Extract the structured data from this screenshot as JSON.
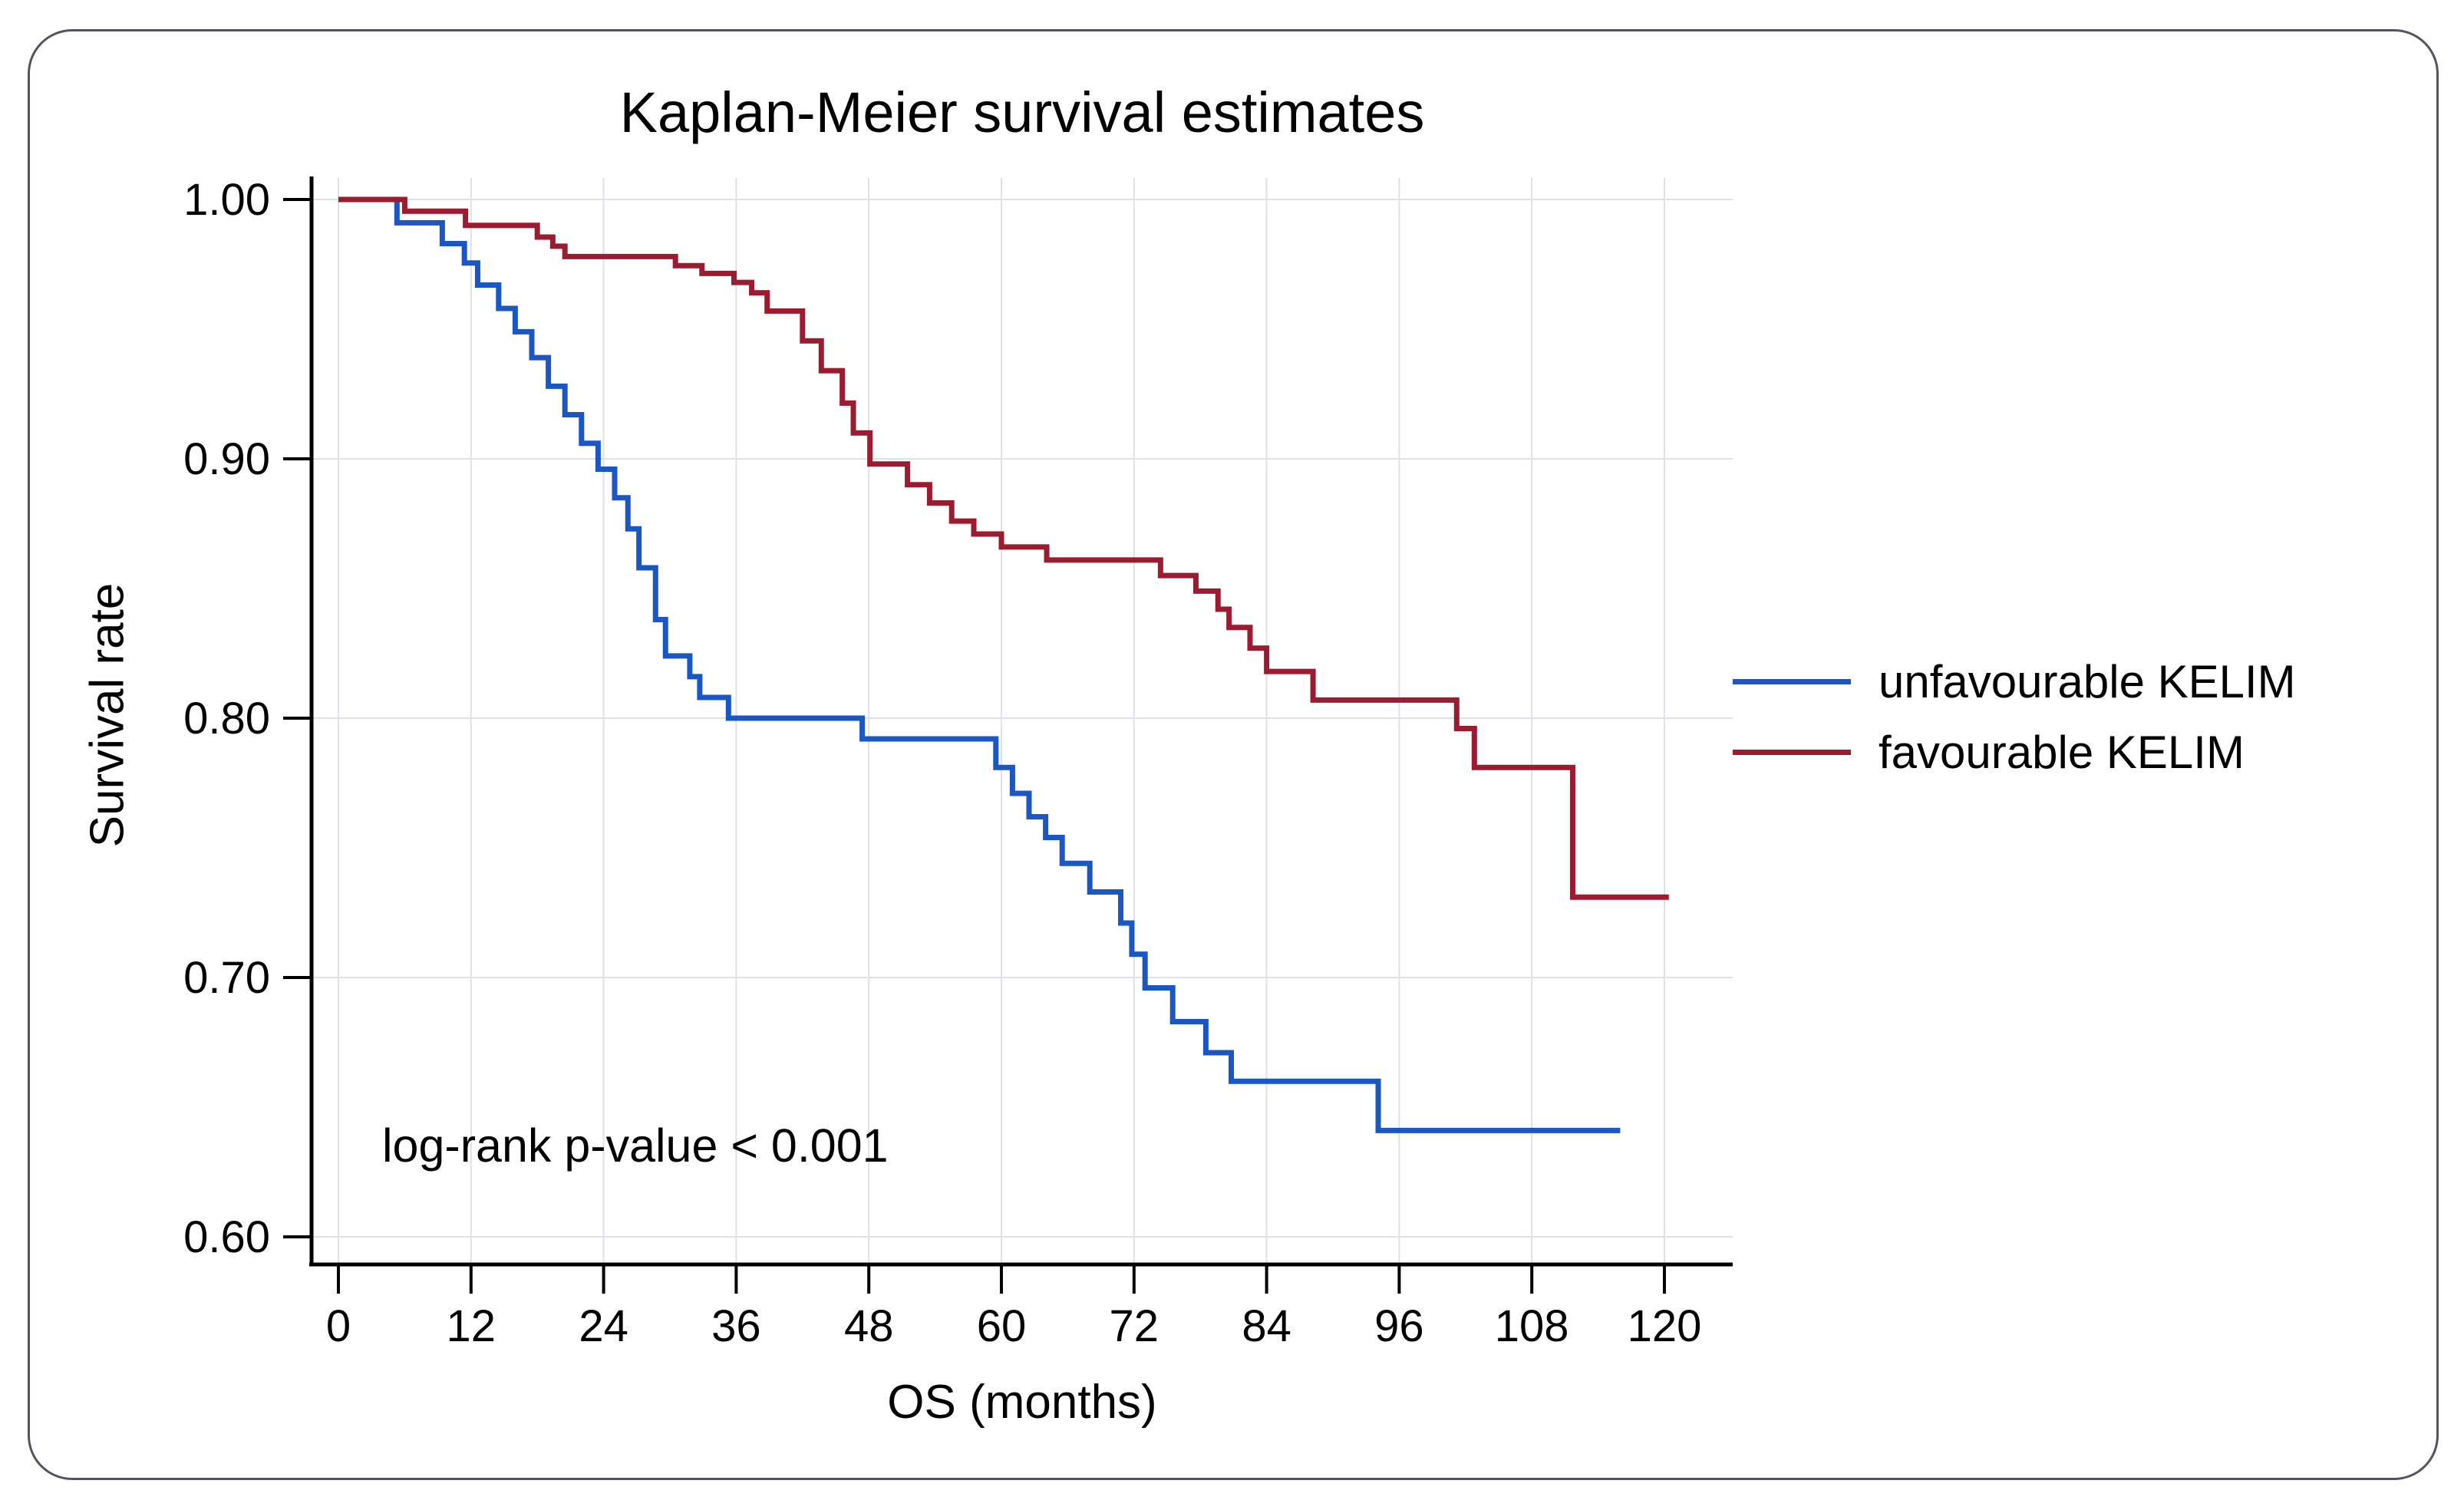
{
  "figure": {
    "border_color": "#56525e",
    "background": "#ffffff"
  },
  "chart_data": {
    "type": "line",
    "subtype": "kaplan-meier-step",
    "title": "Kaplan-Meier survival estimates",
    "xlabel": "OS (months)",
    "ylabel": "Survival rate",
    "annotation": "log-rank p-value < 0.001",
    "xlim": [
      0,
      126
    ],
    "ylim": [
      0.585,
      1.009
    ],
    "xticks": [
      0,
      12,
      24,
      36,
      48,
      60,
      72,
      84,
      96,
      108,
      120
    ],
    "xtick_labels": [
      "0",
      "12",
      "24",
      "36",
      "48",
      "60",
      "72",
      "84",
      "96",
      "108",
      "120"
    ],
    "yticks": [
      1.0,
      0.9,
      0.8,
      0.7,
      0.6
    ],
    "ytick_labels": [
      "1.00",
      "0.90",
      "0.80",
      "0.70",
      "0.60"
    ],
    "grid": true,
    "grid_color": "#dde1e9",
    "axis_color": "#000000",
    "legend_position": "right",
    "series": [
      {
        "name": "unfavourable KELIM",
        "color": "#1b57c2",
        "end_month": 116,
        "points": [
          [
            0,
            1.0
          ],
          [
            5.3,
            0.991
          ],
          [
            9.4,
            0.983
          ],
          [
            11.4,
            0.9755
          ],
          [
            12.6,
            0.967
          ],
          [
            14.5,
            0.958
          ],
          [
            16,
            0.949
          ],
          [
            17.5,
            0.939
          ],
          [
            19,
            0.928
          ],
          [
            20.5,
            0.917
          ],
          [
            22,
            0.906
          ],
          [
            23.5,
            0.896
          ],
          [
            25,
            0.885
          ],
          [
            26.2,
            0.873
          ],
          [
            27.2,
            0.858
          ],
          [
            28.7,
            0.838
          ],
          [
            29.6,
            0.824
          ],
          [
            31.8,
            0.816
          ],
          [
            32.7,
            0.808
          ],
          [
            35.3,
            0.8
          ],
          [
            47.4,
            0.792
          ],
          [
            59.5,
            0.781
          ],
          [
            61,
            0.771
          ],
          [
            62.5,
            0.762
          ],
          [
            64,
            0.754
          ],
          [
            65.5,
            0.744
          ],
          [
            68,
            0.733
          ],
          [
            70.8,
            0.721
          ],
          [
            71.8,
            0.709
          ],
          [
            73,
            0.696
          ],
          [
            75.5,
            0.683
          ],
          [
            78.5,
            0.671
          ],
          [
            80.8,
            0.66
          ],
          [
            94.1,
            0.641
          ]
        ]
      },
      {
        "name": "favourable KELIM",
        "color": "#9b1c31",
        "end_month": 120.4,
        "points": [
          [
            0,
            1.0
          ],
          [
            6,
            0.9955
          ],
          [
            11.5,
            0.99
          ],
          [
            18,
            0.9855
          ],
          [
            19.4,
            0.982
          ],
          [
            20.5,
            0.978
          ],
          [
            30.5,
            0.9745
          ],
          [
            32.9,
            0.9715
          ],
          [
            35.8,
            0.968
          ],
          [
            37.4,
            0.964
          ],
          [
            38.8,
            0.957
          ],
          [
            42,
            0.9455
          ],
          [
            43.7,
            0.934
          ],
          [
            45.6,
            0.9215
          ],
          [
            46.6,
            0.91
          ],
          [
            48.1,
            0.898
          ],
          [
            51.5,
            0.89
          ],
          [
            53.5,
            0.883
          ],
          [
            55.5,
            0.876
          ],
          [
            57.5,
            0.871
          ],
          [
            60,
            0.866
          ],
          [
            64.1,
            0.861
          ],
          [
            74.4,
            0.855
          ],
          [
            77.6,
            0.849
          ],
          [
            79.6,
            0.842
          ],
          [
            80.6,
            0.835
          ],
          [
            82.5,
            0.827
          ],
          [
            84,
            0.818
          ],
          [
            88.2,
            0.807
          ],
          [
            101.2,
            0.796
          ],
          [
            102.8,
            0.781
          ],
          [
            111.7,
            0.731
          ]
        ]
      }
    ]
  }
}
